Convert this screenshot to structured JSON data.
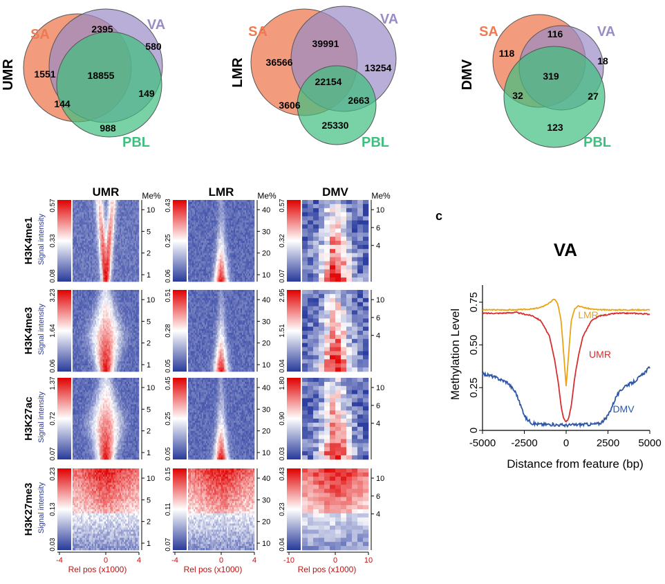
{
  "venn": [
    {
      "row_label": "UMR",
      "sets": [
        "SA",
        "VA",
        "PBL"
      ],
      "regions": {
        "sa_only": "1551",
        "sa_va": "2395",
        "va_only": "580",
        "all": "18855",
        "va_pbl": "149",
        "sa_pbl": "144",
        "pbl_only": "988"
      }
    },
    {
      "row_label": "LMR",
      "sets": [
        "SA",
        "VA",
        "PBL"
      ],
      "regions": {
        "sa_only": "36566",
        "sa_va": "39991",
        "va_only": "13254",
        "all": "22154",
        "va_pbl": "2663",
        "sa_pbl": "3606",
        "pbl_only": "25330"
      }
    },
    {
      "row_label": "DMV",
      "sets": [
        "SA",
        "VA",
        "PBL"
      ],
      "regions": {
        "sa_only": "118",
        "sa_va": "116",
        "va_only": "18",
        "all": "319",
        "va_pbl": "27",
        "sa_pbl": "32",
        "pbl_only": "123"
      }
    }
  ],
  "heatmaps": {
    "col_titles": [
      "UMR",
      "LMR",
      "DMV"
    ],
    "me_label": "Me%",
    "signal_label": "Signal intensity",
    "xlabel": "Rel pos (x1000)",
    "rows": [
      {
        "mark": "H3K4me1",
        "scales": [
          [
            "0.57",
            "0.33",
            "0.08"
          ],
          [
            "0.43",
            "0.25",
            "0.06"
          ],
          [
            "0.57",
            "0.32",
            "0.07"
          ]
        ],
        "me": [
          [
            "10",
            "5",
            "2",
            "1"
          ],
          [
            "40",
            "30",
            "20",
            "10"
          ],
          [
            "10",
            "6",
            "4"
          ]
        ]
      },
      {
        "mark": "H3K4me3",
        "scales": [
          [
            "3.23",
            "1.64",
            "0.06"
          ],
          [
            "0.51",
            "0.28",
            "0.05"
          ],
          [
            "2.95",
            "1.51",
            "0.04"
          ]
        ],
        "me": [
          [
            "10",
            "5",
            "2",
            "1"
          ],
          [
            "40",
            "30",
            "20",
            "10"
          ],
          [
            "10",
            "6",
            "4"
          ]
        ]
      },
      {
        "mark": "H3K27ac",
        "scales": [
          [
            "1.37",
            "0.72",
            "0.07"
          ],
          [
            "0.45",
            "0.25",
            "0.05"
          ],
          [
            "1.80",
            "0.90",
            "0.03"
          ]
        ],
        "me": [
          [
            "10",
            "5",
            "2",
            "1"
          ],
          [
            "40",
            "30",
            "20",
            "10"
          ],
          [
            "10",
            "6",
            "4"
          ]
        ]
      },
      {
        "mark": "H3K27me3",
        "scales": [
          [
            "0.23",
            "0.13",
            "0.03"
          ],
          [
            "0.15",
            "0.11",
            "0.07"
          ],
          [
            "0.43",
            "0.23",
            "0.04"
          ]
        ],
        "me": [
          [
            "10",
            "5",
            "2",
            "1"
          ],
          [
            "40",
            "30",
            "20",
            "10"
          ],
          [
            "10",
            "6",
            "4"
          ]
        ]
      }
    ],
    "x_ticks": [
      [
        "-4",
        "0",
        "4"
      ],
      [
        "-4",
        "0",
        "4"
      ],
      [
        "-10",
        "0",
        "10"
      ]
    ]
  },
  "panel_letter": "c",
  "chart_data": {
    "type": "line",
    "title": "VA",
    "xlabel": "Distance from feature (bp)",
    "ylabel": "Methylation Level",
    "xlim": [
      -5000,
      5000
    ],
    "ylim": [
      0,
      0.85
    ],
    "x_ticks": [
      "-5000",
      "-2500",
      "0",
      "2500",
      "5000"
    ],
    "y_ticks": [
      "0",
      "0.25",
      "0.50",
      "0.75"
    ],
    "x_tick_values": [
      -5000,
      -2500,
      0,
      2500,
      5000
    ],
    "y_tick_values": [
      0,
      0.25,
      0.5,
      0.75
    ],
    "series": [
      {
        "name": "LMR",
        "color": "#e8a317",
        "x": [
          -5000,
          -4000,
          -3000,
          -2000,
          -1500,
          -1000,
          -700,
          -500,
          -300,
          -150,
          0,
          150,
          300,
          500,
          700,
          1000,
          1500,
          2000,
          3000,
          4000,
          5000
        ],
        "y": [
          0.705,
          0.705,
          0.705,
          0.71,
          0.72,
          0.745,
          0.77,
          0.74,
          0.64,
          0.45,
          0.26,
          0.45,
          0.64,
          0.71,
          0.73,
          0.72,
          0.71,
          0.705,
          0.705,
          0.705,
          0.705
        ]
      },
      {
        "name": "UMR",
        "color": "#d62d2d",
        "x": [
          -5000,
          -4000,
          -3000,
          -2000,
          -1500,
          -1000,
          -700,
          -500,
          -300,
          -150,
          0,
          150,
          300,
          500,
          700,
          1000,
          1500,
          2000,
          3000,
          4000,
          5000
        ],
        "y": [
          0.685,
          0.685,
          0.69,
          0.67,
          0.64,
          0.55,
          0.42,
          0.3,
          0.14,
          0.07,
          0.05,
          0.07,
          0.14,
          0.3,
          0.42,
          0.55,
          0.64,
          0.67,
          0.685,
          0.685,
          0.68
        ]
      },
      {
        "name": "DMV",
        "color": "#2e56a6",
        "x": [
          -5000,
          -4500,
          -4000,
          -3500,
          -3000,
          -2700,
          -2400,
          -2000,
          -1500,
          -1000,
          0,
          1000,
          1500,
          2000,
          2400,
          2700,
          3000,
          3500,
          4000,
          4500,
          5000
        ],
        "y": [
          0.33,
          0.32,
          0.3,
          0.28,
          0.22,
          0.14,
          0.07,
          0.04,
          0.035,
          0.035,
          0.03,
          0.035,
          0.035,
          0.04,
          0.07,
          0.13,
          0.2,
          0.26,
          0.28,
          0.32,
          0.37
        ]
      }
    ]
  }
}
